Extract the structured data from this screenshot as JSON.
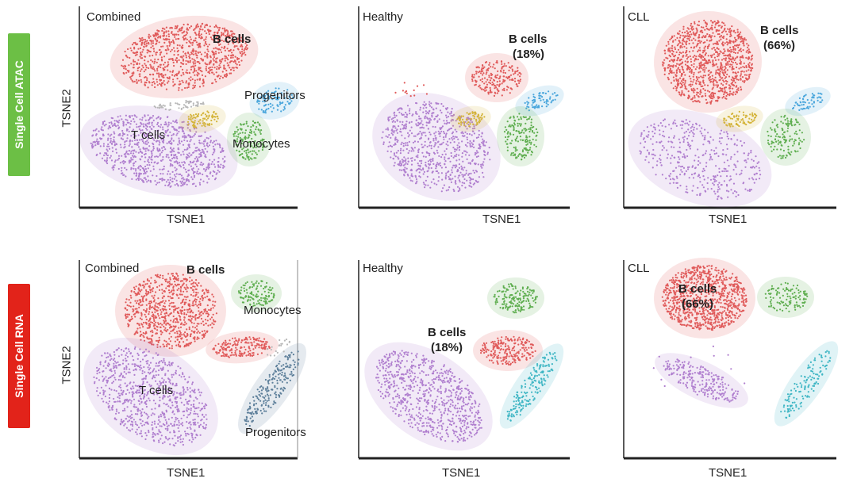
{
  "row_tags": [
    {
      "label": "Single Cell ATAC",
      "color": "#6cbf45"
    },
    {
      "label": "Single Cell RNA",
      "color": "#e2231a"
    }
  ],
  "axes": {
    "x_label": "TSNE1",
    "y_label": "TSNE2"
  },
  "panel_titles": [
    "Combined",
    "Healthy",
    "CLL",
    "Combined",
    "Healthy",
    "CLL"
  ],
  "cluster_labels": {
    "b_cells": "B cells",
    "t_cells": "T cells",
    "monocytes": "Monocytes",
    "progenitors": "Progenitors",
    "healthy_pct": "(18%)",
    "cll_pct": "(66%)"
  },
  "colors": {
    "b_cells": "#e05a5a",
    "t_cells": "#b07fcf",
    "monocytes": "#5fae50",
    "progenitors": "#4aa6dc",
    "nk": "#d4b43a",
    "grey": "#b9b9b9"
  },
  "chart_data": {
    "type": "scatter",
    "description": "t-SNE embeddings of single-cell ATAC and RNA profiles",
    "rows": [
      "Single Cell ATAC",
      "Single Cell RNA"
    ],
    "columns": [
      "Combined",
      "Healthy",
      "CLL"
    ],
    "xlabel": "TSNE1",
    "ylabel": "TSNE2",
    "b_cell_fraction": {
      "Healthy": 18,
      "CLL": 66
    },
    "clusters": [
      "B cells",
      "T cells",
      "Monocytes",
      "Progenitors"
    ]
  }
}
